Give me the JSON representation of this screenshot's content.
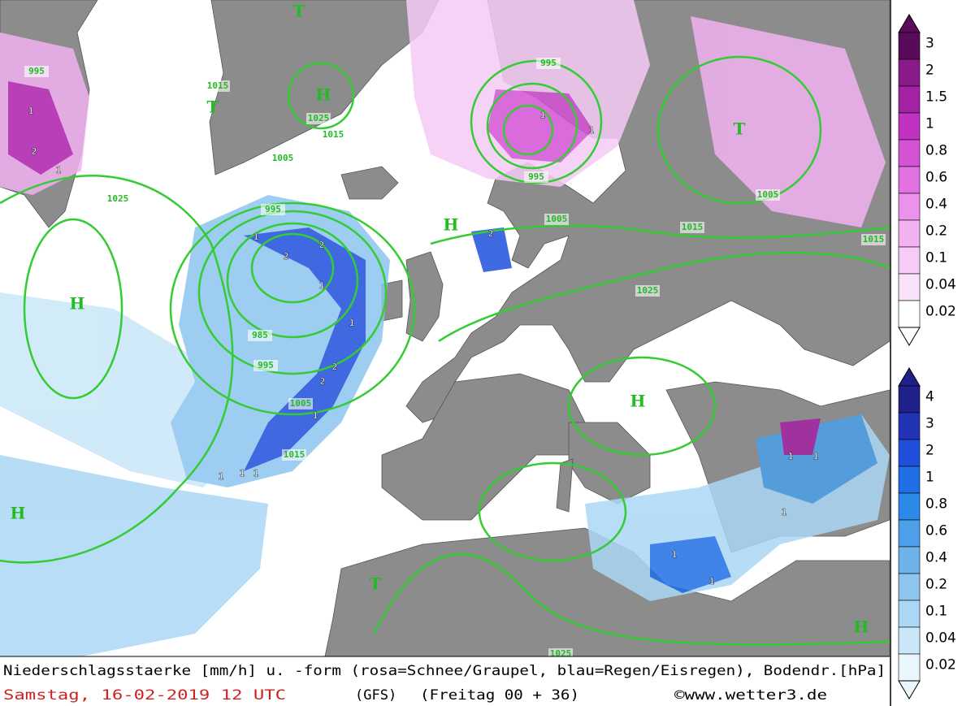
{
  "map": {
    "pressure_centers": [
      "H",
      "H",
      "H",
      "H",
      "H",
      "H",
      "T",
      "T",
      "T",
      "T"
    ],
    "isobar_labels": [
      "995",
      "1015",
      "1025",
      "1015",
      "1005",
      "1025",
      "995",
      "995",
      "1005",
      "1005",
      "1015",
      "1015",
      "1025",
      "995",
      "985",
      "995",
      "1005",
      "1015",
      "1025"
    ],
    "precip_labels": [
      "1",
      "2",
      "1",
      "1",
      "2",
      "2",
      "1",
      "1",
      "2",
      "2",
      "1",
      "1",
      "1",
      "1",
      "1",
      "1",
      "2",
      "1",
      "1",
      "1",
      "1",
      "1"
    ]
  },
  "legend_snow": {
    "labels": [
      "3",
      "2",
      "1.5",
      "1",
      "0.8",
      "0.6",
      "0.4",
      "0.2",
      "0.1",
      "0.04",
      "0.02"
    ],
    "colors": [
      "#5a0a5a",
      "#8a1a8a",
      "#a423a4",
      "#c232c2",
      "#d452d4",
      "#e271e2",
      "#ec92ec",
      "#f2b2f2",
      "#f6cbf6",
      "#fbe2fb",
      "#ffffff"
    ]
  },
  "legend_rain": {
    "labels": [
      "4",
      "3",
      "2",
      "1",
      "0.8",
      "0.6",
      "0.4",
      "0.2",
      "0.1",
      "0.04",
      "0.02"
    ],
    "colors": [
      "#20208a",
      "#2333b5",
      "#1f50dc",
      "#1f6fe6",
      "#2c89e8",
      "#4c9fe8",
      "#6db3ea",
      "#8dc5ef",
      "#abd7f4",
      "#c9e7f8",
      "#e9f6fc"
    ]
  },
  "footer": {
    "description": "Niederschlagsstaerke [mm/h] u. -form (rosa=Schnee/Graupel, blau=Regen/Eisregen), Bodendr.[hPa]",
    "date": "Samstag, 16-02-2019  12 UTC",
    "model": "(GFS)",
    "run": "(Freitag 00 + 36)",
    "source": "©www.wetter3.de"
  }
}
